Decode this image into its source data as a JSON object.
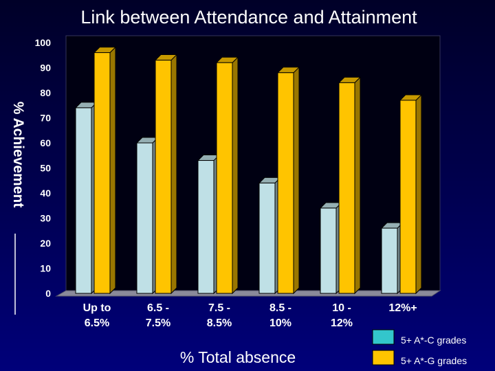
{
  "chart_data": {
    "type": "bar",
    "title": "Link between Attendance and Attainment",
    "ylabel": "% Achievement",
    "xlabel": "% Total absence",
    "categories": [
      [
        "Up to",
        "6.5%"
      ],
      [
        "6.5 -",
        "7.5%"
      ],
      [
        "7.5 -",
        "8.5%"
      ],
      [
        "8.5 -",
        "10%"
      ],
      [
        "10 -",
        "12%"
      ],
      [
        "12%+"
      ]
    ],
    "series": [
      {
        "name": "5+ A*-C grades",
        "color": "#bfe0e6",
        "values": [
          74,
          60,
          53,
          44,
          34,
          26
        ]
      },
      {
        "name": "5+ A*-G grades",
        "color": "#ffc400",
        "values": [
          96,
          93,
          92,
          88,
          84,
          77
        ]
      }
    ],
    "ylim": [
      0,
      100
    ],
    "yticks": [
      0,
      10,
      20,
      30,
      40,
      50,
      60,
      70,
      80,
      90,
      100
    ],
    "legend_swatch_colors": [
      "#33c6cc",
      "#ffc400"
    ],
    "legend_position": "bottom-right",
    "grid": false,
    "style": "3d-clustered-columns"
  }
}
